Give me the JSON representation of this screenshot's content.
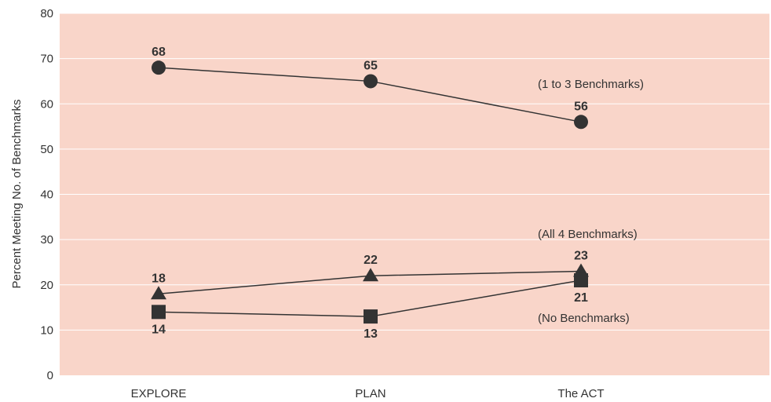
{
  "chart_data": {
    "type": "line",
    "categories": [
      "EXPLORE",
      "PLAN",
      "The ACT"
    ],
    "ylabel": "Percent Meeting No. of Benchmarks",
    "xlabel": "",
    "ylim": [
      0,
      80
    ],
    "yticks": [
      "0",
      "10",
      "20",
      "30",
      "40",
      "50",
      "60",
      "70",
      "80"
    ],
    "grid": true,
    "background_color": "#f9d5c9",
    "line_color": "#333333",
    "series": [
      {
        "name": "(1 to 3  Benchmarks)",
        "marker": "circle",
        "values": [
          68,
          65,
          56
        ],
        "labels": [
          "68",
          "65",
          "56"
        ]
      },
      {
        "name": "(All 4  Benchmarks)",
        "marker": "triangle",
        "values": [
          18,
          22,
          23
        ],
        "labels": [
          "18",
          "22",
          "23"
        ]
      },
      {
        "name": "(No Benchmarks)",
        "marker": "square",
        "values": [
          14,
          13,
          21
        ],
        "labels": [
          "14",
          "13",
          "21"
        ]
      }
    ]
  }
}
